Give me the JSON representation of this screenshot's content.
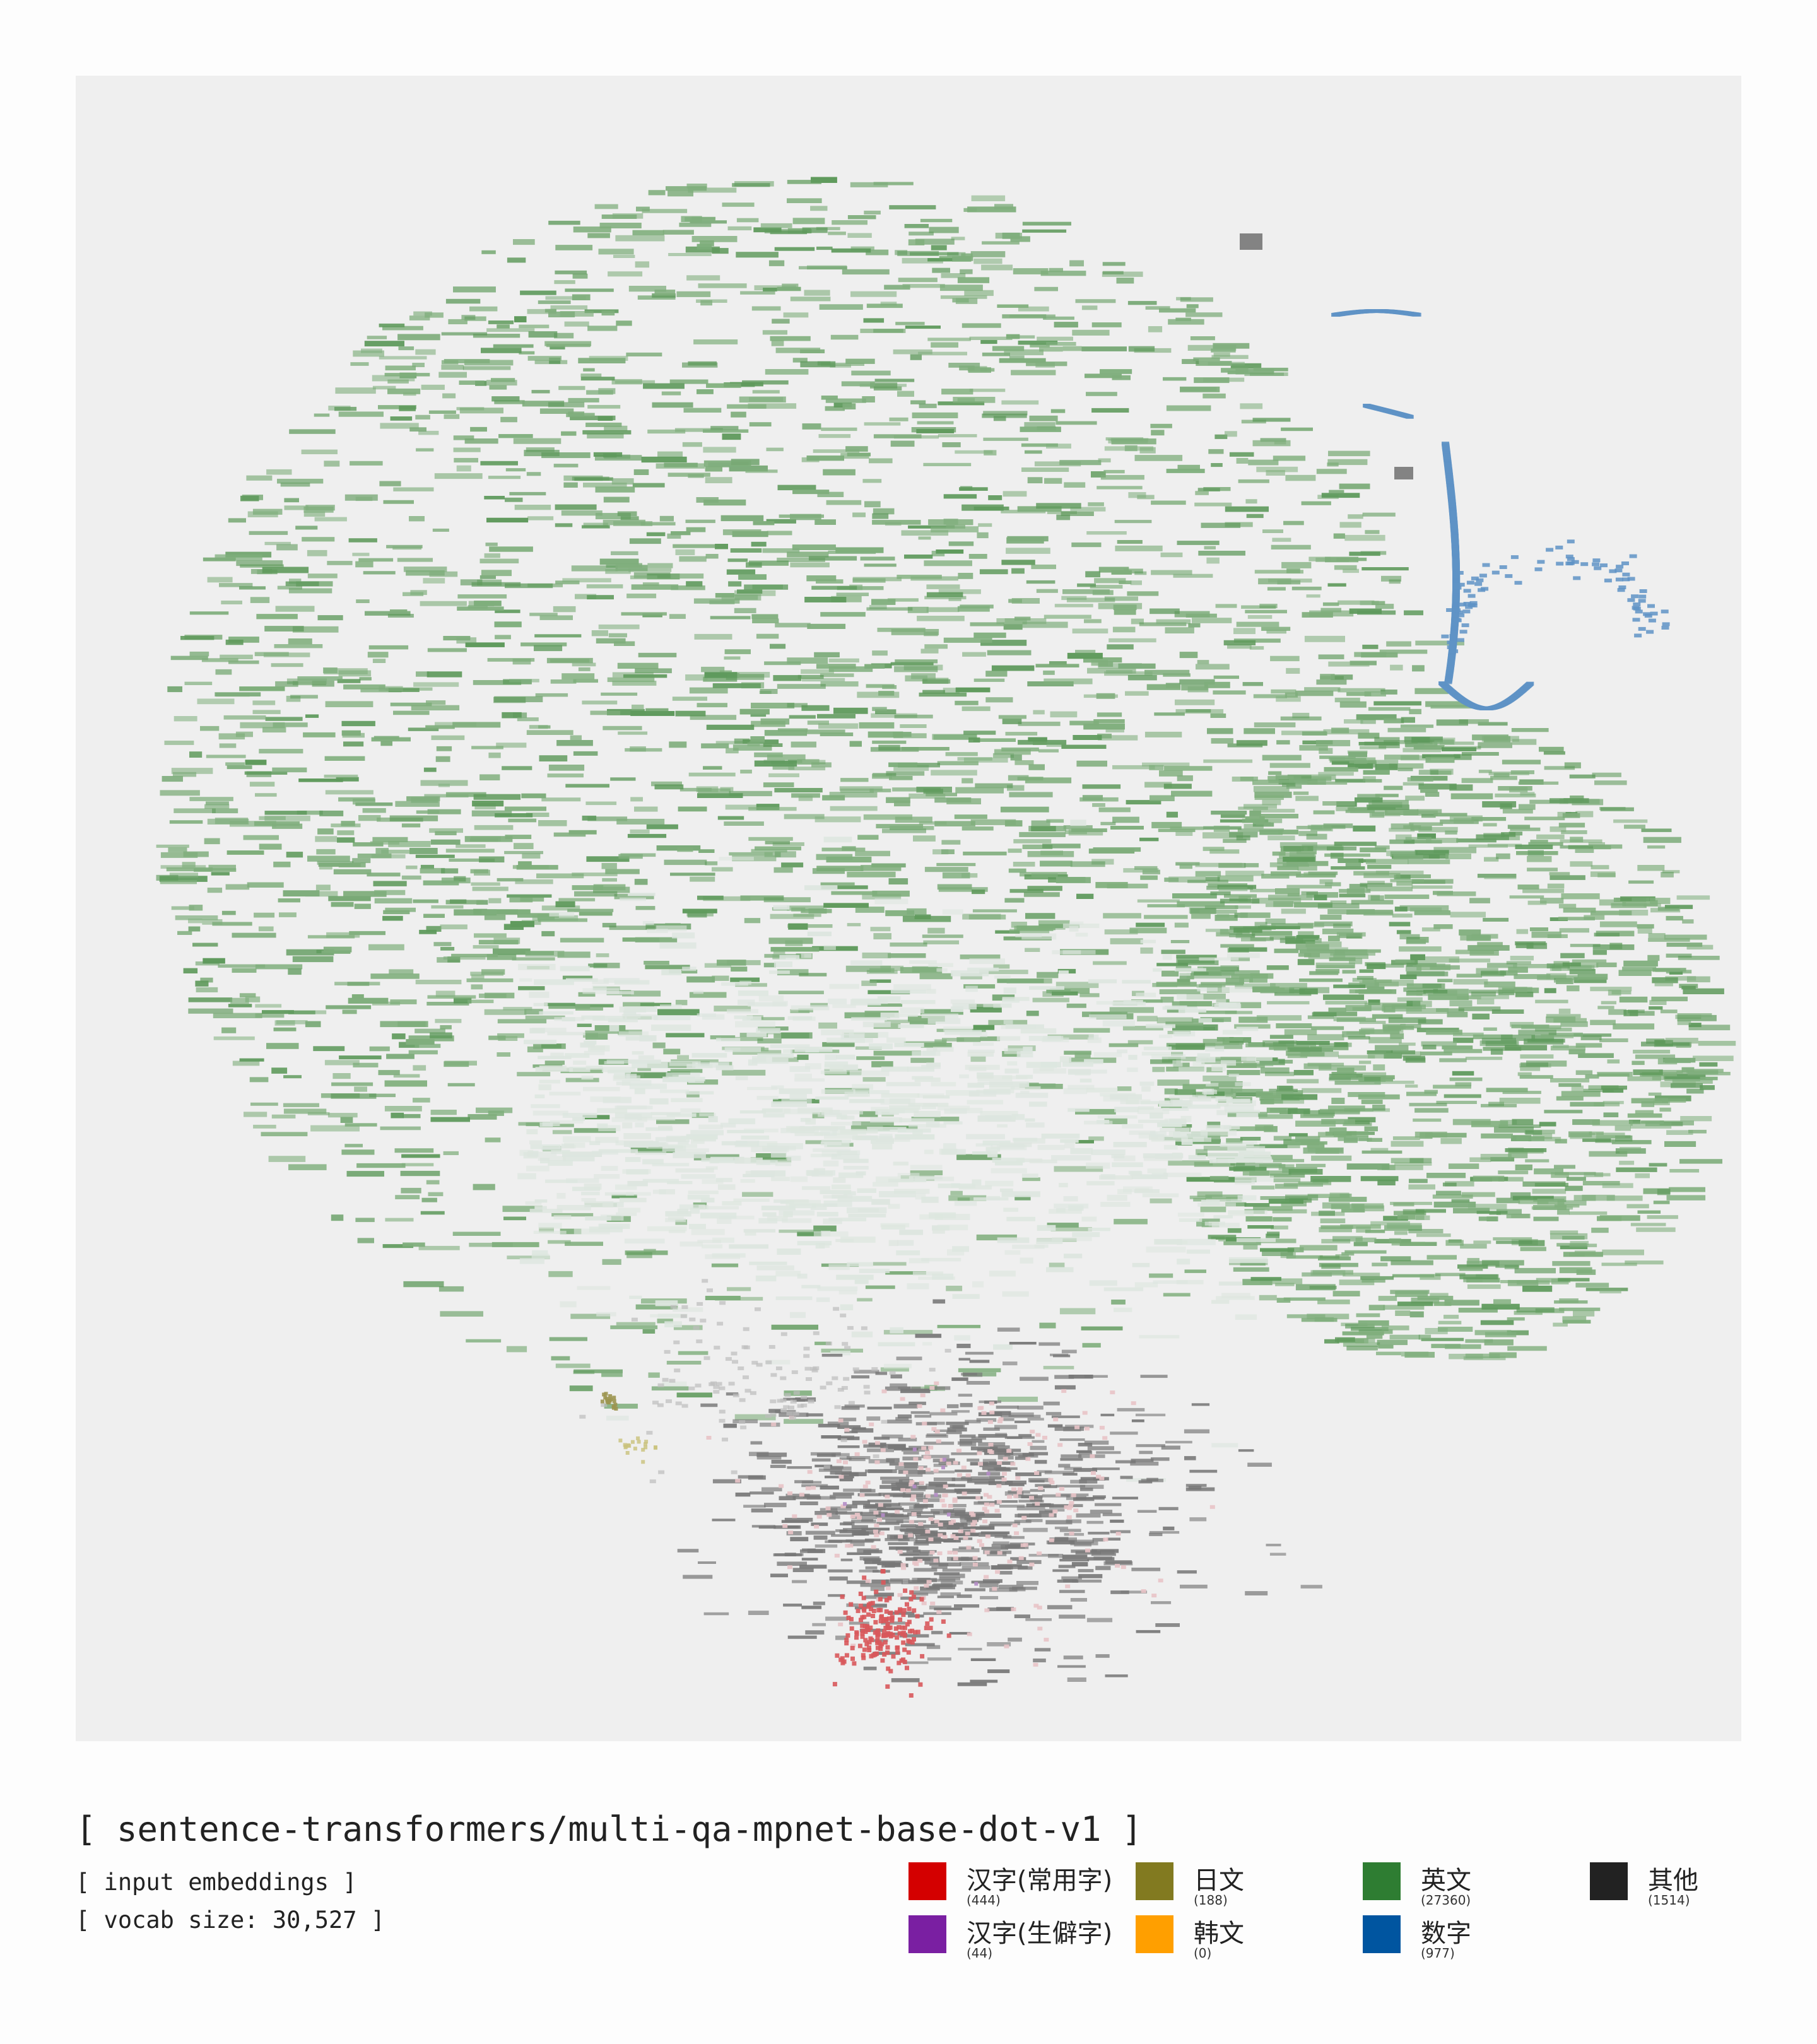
{
  "title": "[ sentence-transformers/multi-qa-mpnet-base-dot-v1 ]",
  "subtitle_1": "[ input embeddings ]",
  "subtitle_2": "[ vocab size: 30,527 ]",
  "chart_data": {
    "type": "scatter",
    "title": "[ sentence-transformers/multi-qa-mpnet-base-dot-v1 ]",
    "grid": false,
    "legend_placement": "bottom-right",
    "series": [
      {
        "name": "汉字(常用字)",
        "count": "(444)",
        "color": "#d40000"
      },
      {
        "name": "汉字(生僻字)",
        "count": "(44)",
        "color": "#7a1fa2"
      },
      {
        "name": "日文",
        "count": "(188)",
        "color": "#827a20"
      },
      {
        "name": "韩文",
        "count": "(0)",
        "color": "#ff9f00"
      },
      {
        "name": "英文",
        "count": "(27360)",
        "color": "#2e7d32"
      },
      {
        "name": "数字",
        "count": "(977)",
        "color": "#0055a0"
      },
      {
        "name": "其他",
        "count": "(1514)",
        "color": "#222222"
      }
    ]
  }
}
